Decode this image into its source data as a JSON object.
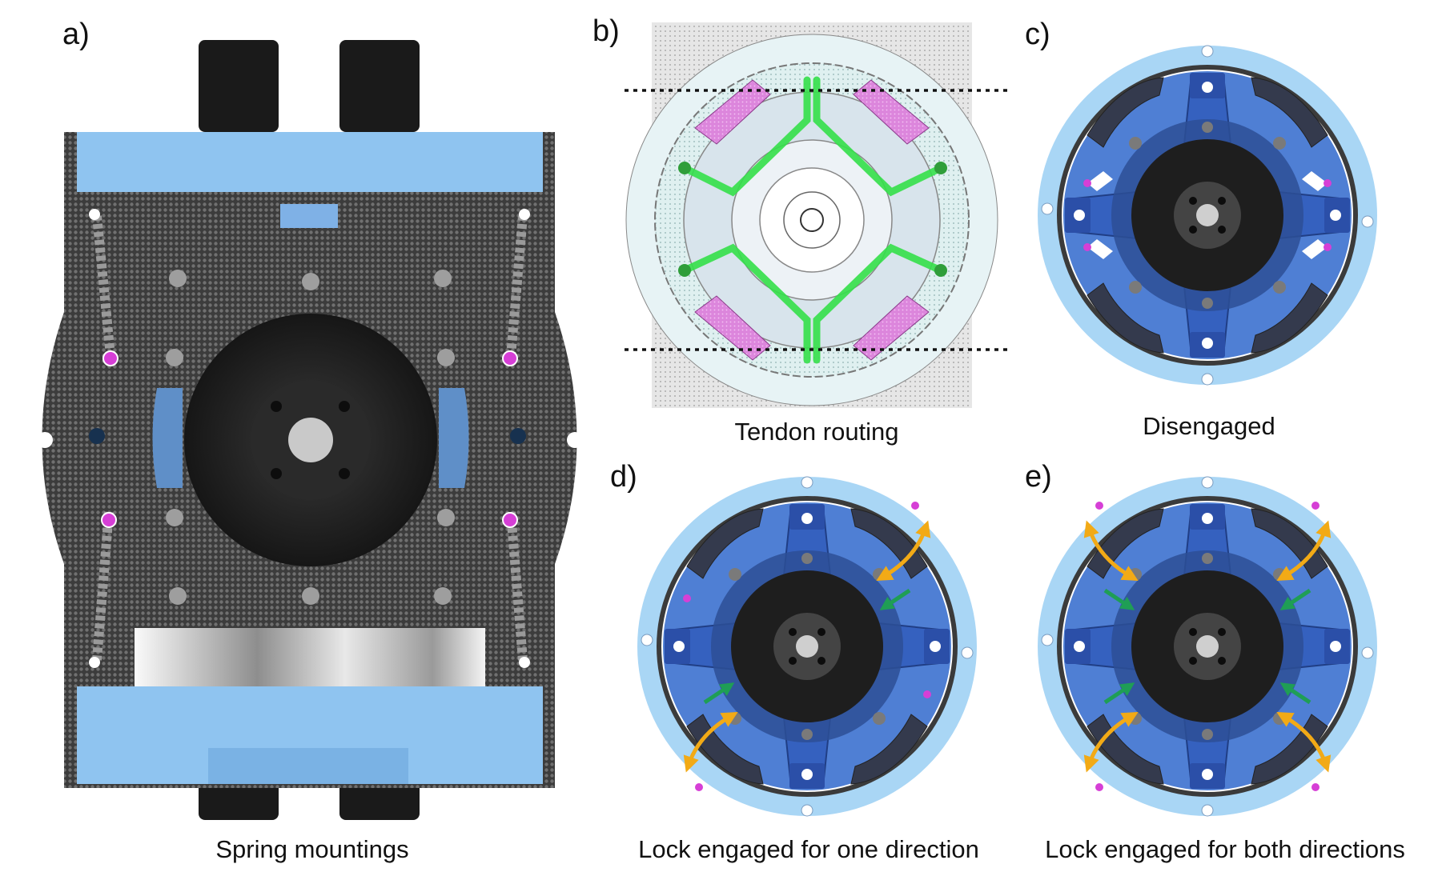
{
  "panels": [
    {
      "letter": "a)",
      "caption": "Spring mountings"
    },
    {
      "letter": "b)",
      "caption": "Tendon routing"
    },
    {
      "letter": "c)",
      "caption": "Disengaged"
    },
    {
      "letter": "d)",
      "caption": "Lock engaged for one direction"
    },
    {
      "letter": "e)",
      "caption": "Lock engaged for both directions"
    }
  ],
  "colors": {
    "frame_blue": "#8fc4f0",
    "ring_light_blue": "#a9d6f5",
    "ring_blue": "#4f7fd4",
    "ring_dark_blue": "#2c4da3",
    "pawl_dark": "#3a3f52",
    "hub_black": "#1f1f1f",
    "magnet_magenta": "#d63fd6",
    "tendon_green": "#35e04a",
    "arrow_orange": "#f2aa16",
    "arrow_green": "#1f9e55",
    "mesh_gray": "#555555"
  }
}
